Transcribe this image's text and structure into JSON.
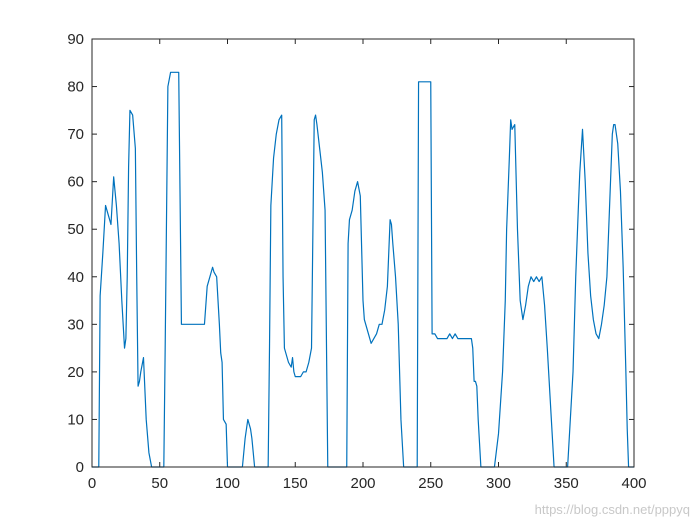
{
  "chart_data": {
    "type": "line",
    "xlim": [
      0,
      400
    ],
    "ylim": [
      0,
      90
    ],
    "xticks": [
      0,
      50,
      100,
      150,
      200,
      250,
      300,
      350,
      400
    ],
    "yticks": [
      0,
      10,
      20,
      30,
      40,
      50,
      60,
      70,
      80,
      90
    ],
    "grid": false,
    "series": [
      {
        "color": "#0072BD",
        "x": [
          0,
          5,
          6,
          8,
          10,
          12,
          13,
          14,
          16,
          18,
          20,
          22,
          24,
          25,
          26,
          27,
          28,
          30,
          32,
          33,
          34,
          35,
          36,
          38,
          40,
          42,
          44,
          45,
          47,
          50,
          53,
          54,
          56,
          58,
          60,
          62,
          64,
          66,
          67,
          70,
          75,
          80,
          83,
          85,
          87,
          88,
          89,
          90,
          92,
          94,
          95,
          96,
          97,
          99,
          100,
          105,
          110,
          111,
          113,
          115,
          117,
          118,
          119,
          120,
          121,
          125,
          130,
          131,
          132,
          134,
          136,
          138,
          140,
          141,
          142,
          143,
          145,
          147,
          148,
          149,
          150,
          152,
          154,
          156,
          158,
          160,
          162,
          164,
          165,
          166,
          168,
          170,
          172,
          174,
          175,
          176,
          180,
          185,
          188,
          189,
          190,
          192,
          194,
          196,
          198,
          200,
          201,
          202,
          204,
          206,
          208,
          210,
          212,
          214,
          216,
          218,
          220,
          221,
          222,
          224,
          226,
          228,
          230,
          231,
          232,
          240,
          241,
          242,
          244,
          246,
          248,
          249,
          250,
          251,
          253,
          255,
          258,
          262,
          264,
          266,
          268,
          270,
          272,
          275,
          278,
          280,
          281,
          282,
          283,
          284,
          285,
          286,
          287,
          290,
          295,
          297,
          300,
          303,
          305,
          306,
          308,
          309,
          310,
          312,
          314,
          316,
          318,
          320,
          322,
          324,
          326,
          328,
          330,
          332,
          334,
          336,
          338,
          340,
          341,
          346,
          349,
          351,
          353,
          355,
          357,
          359,
          360,
          362,
          364,
          366,
          368,
          370,
          372,
          374,
          376,
          378,
          380,
          382,
          384,
          385,
          386,
          388,
          390,
          392,
          394,
          395,
          396,
          400
        ],
        "y": [
          0,
          0,
          36,
          45,
          55,
          53,
          52,
          51,
          61,
          55,
          47,
          35,
          25,
          27,
          40,
          63,
          75,
          74,
          67,
          40,
          17,
          18,
          20,
          23,
          10,
          3,
          0,
          0,
          0,
          0,
          0,
          25,
          80,
          83,
          83,
          83,
          83,
          30,
          30,
          30,
          30,
          30,
          30,
          38,
          40,
          41,
          42,
          41,
          40,
          30,
          24,
          22,
          10,
          9,
          0,
          0,
          0,
          0,
          6,
          10,
          8,
          6,
          3,
          0,
          0,
          0,
          0,
          25,
          55,
          65,
          70,
          73,
          74,
          40,
          25,
          24,
          22,
          21,
          23,
          20,
          19,
          19,
          19,
          20,
          20,
          22,
          25,
          73,
          74,
          72,
          67,
          62,
          54,
          0,
          0,
          0,
          0,
          0,
          0,
          47,
          52,
          54,
          58,
          60,
          57,
          35,
          31,
          30,
          28,
          26,
          27,
          28,
          30,
          30,
          33,
          38,
          52,
          51,
          47,
          40,
          30,
          10,
          0,
          0,
          0,
          0,
          81,
          81,
          81,
          81,
          81,
          81,
          81,
          28,
          28,
          27,
          27,
          27,
          28,
          27,
          28,
          27,
          27,
          27,
          27,
          27,
          25,
          18,
          18,
          17,
          10,
          5,
          0,
          0,
          0,
          0,
          7,
          20,
          35,
          50,
          65,
          73,
          71,
          72,
          50,
          35,
          31,
          34,
          38,
          40,
          39,
          40,
          39,
          40,
          34,
          25,
          15,
          5,
          0,
          0,
          0,
          0,
          10,
          20,
          40,
          55,
          62,
          71,
          60,
          45,
          36,
          31,
          28,
          27,
          30,
          34,
          40,
          55,
          70,
          72,
          72,
          68,
          58,
          42,
          20,
          8,
          0,
          0
        ]
      }
    ]
  },
  "watermark": "https://blog.csdn.net/pppyq"
}
